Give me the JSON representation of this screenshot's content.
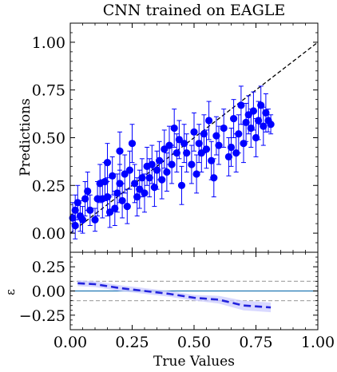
{
  "chart_data": [
    {
      "type": "scatter",
      "title": "CNN trained on EAGLE",
      "xlabel": "",
      "ylabel": "Predictions",
      "xlim": [
        0,
        1
      ],
      "ylim": [
        -0.1,
        1.1
      ],
      "x_ticks": [
        "0.00",
        "0.25",
        "0.50",
        "0.75",
        "1.00"
      ],
      "y_ticks": [
        "0.00",
        "0.25",
        "0.50",
        "0.75",
        "1.00"
      ],
      "grid": false,
      "reference_line": {
        "style": "dashed",
        "color": "#000000",
        "from": [
          0,
          0
        ],
        "to": [
          1,
          1
        ]
      },
      "marker_color": "#0000ff",
      "series": [
        {
          "points": [
            {
              "x": 0.01,
              "y": 0.08,
              "err": 0.08
            },
            {
              "x": 0.02,
              "y": 0.12,
              "err": 0.08
            },
            {
              "x": 0.02,
              "y": 0.04,
              "err": 0.07
            },
            {
              "x": 0.03,
              "y": 0.16,
              "err": 0.09
            },
            {
              "x": 0.04,
              "y": 0.09,
              "err": 0.08
            },
            {
              "x": 0.05,
              "y": 0.07,
              "err": 0.07
            },
            {
              "x": 0.06,
              "y": 0.18,
              "err": 0.09
            },
            {
              "x": 0.07,
              "y": 0.22,
              "err": 0.1
            },
            {
              "x": 0.08,
              "y": 0.12,
              "err": 0.08
            },
            {
              "x": 0.1,
              "y": 0.07,
              "err": 0.06
            },
            {
              "x": 0.11,
              "y": 0.18,
              "err": 0.09
            },
            {
              "x": 0.12,
              "y": 0.26,
              "err": 0.1
            },
            {
              "x": 0.13,
              "y": 0.18,
              "err": 0.1
            },
            {
              "x": 0.14,
              "y": 0.27,
              "err": 0.1
            },
            {
              "x": 0.15,
              "y": 0.37,
              "err": 0.1
            },
            {
              "x": 0.15,
              "y": 0.19,
              "err": 0.1
            },
            {
              "x": 0.16,
              "y": 0.11,
              "err": 0.08
            },
            {
              "x": 0.17,
              "y": 0.3,
              "err": 0.1
            },
            {
              "x": 0.18,
              "y": 0.13,
              "err": 0.09
            },
            {
              "x": 0.19,
              "y": 0.21,
              "err": 0.1
            },
            {
              "x": 0.2,
              "y": 0.43,
              "err": 0.1
            },
            {
              "x": 0.2,
              "y": 0.26,
              "err": 0.1
            },
            {
              "x": 0.21,
              "y": 0.17,
              "err": 0.09
            },
            {
              "x": 0.22,
              "y": 0.31,
              "err": 0.1
            },
            {
              "x": 0.23,
              "y": 0.14,
              "err": 0.09
            },
            {
              "x": 0.24,
              "y": 0.33,
              "err": 0.1
            },
            {
              "x": 0.25,
              "y": 0.47,
              "err": 0.1
            },
            {
              "x": 0.26,
              "y": 0.26,
              "err": 0.1
            },
            {
              "x": 0.27,
              "y": 0.19,
              "err": 0.1
            },
            {
              "x": 0.28,
              "y": 0.23,
              "err": 0.1
            },
            {
              "x": 0.29,
              "y": 0.29,
              "err": 0.1
            },
            {
              "x": 0.3,
              "y": 0.21,
              "err": 0.1
            },
            {
              "x": 0.31,
              "y": 0.35,
              "err": 0.1
            },
            {
              "x": 0.32,
              "y": 0.29,
              "err": 0.1
            },
            {
              "x": 0.33,
              "y": 0.36,
              "err": 0.1
            },
            {
              "x": 0.34,
              "y": 0.24,
              "err": 0.1
            },
            {
              "x": 0.35,
              "y": 0.33,
              "err": 0.1
            },
            {
              "x": 0.36,
              "y": 0.38,
              "err": 0.1
            },
            {
              "x": 0.37,
              "y": 0.28,
              "err": 0.1
            },
            {
              "x": 0.38,
              "y": 0.44,
              "err": 0.1
            },
            {
              "x": 0.39,
              "y": 0.32,
              "err": 0.1
            },
            {
              "x": 0.4,
              "y": 0.46,
              "err": 0.1
            },
            {
              "x": 0.41,
              "y": 0.36,
              "err": 0.1
            },
            {
              "x": 0.42,
              "y": 0.55,
              "err": 0.1
            },
            {
              "x": 0.43,
              "y": 0.42,
              "err": 0.1
            },
            {
              "x": 0.44,
              "y": 0.49,
              "err": 0.1
            },
            {
              "x": 0.45,
              "y": 0.25,
              "err": 0.1
            },
            {
              "x": 0.46,
              "y": 0.47,
              "err": 0.1
            },
            {
              "x": 0.47,
              "y": 0.42,
              "err": 0.1
            },
            {
              "x": 0.49,
              "y": 0.36,
              "err": 0.1
            },
            {
              "x": 0.5,
              "y": 0.53,
              "err": 0.1
            },
            {
              "x": 0.51,
              "y": 0.31,
              "err": 0.1
            },
            {
              "x": 0.52,
              "y": 0.47,
              "err": 0.1
            },
            {
              "x": 0.53,
              "y": 0.42,
              "err": 0.1
            },
            {
              "x": 0.54,
              "y": 0.52,
              "err": 0.1
            },
            {
              "x": 0.55,
              "y": 0.44,
              "err": 0.1
            },
            {
              "x": 0.56,
              "y": 0.59,
              "err": 0.1
            },
            {
              "x": 0.57,
              "y": 0.38,
              "err": 0.1
            },
            {
              "x": 0.58,
              "y": 0.29,
              "err": 0.1
            },
            {
              "x": 0.59,
              "y": 0.51,
              "err": 0.1
            },
            {
              "x": 0.6,
              "y": 0.46,
              "err": 0.1
            },
            {
              "x": 0.62,
              "y": 0.55,
              "err": 0.1
            },
            {
              "x": 0.64,
              "y": 0.4,
              "err": 0.1
            },
            {
              "x": 0.65,
              "y": 0.45,
              "err": 0.1
            },
            {
              "x": 0.66,
              "y": 0.6,
              "err": 0.1
            },
            {
              "x": 0.67,
              "y": 0.42,
              "err": 0.1
            },
            {
              "x": 0.68,
              "y": 0.52,
              "err": 0.1
            },
            {
              "x": 0.69,
              "y": 0.67,
              "err": 0.1
            },
            {
              "x": 0.7,
              "y": 0.47,
              "err": 0.1
            },
            {
              "x": 0.71,
              "y": 0.58,
              "err": 0.1
            },
            {
              "x": 0.72,
              "y": 0.62,
              "err": 0.1
            },
            {
              "x": 0.73,
              "y": 0.55,
              "err": 0.1
            },
            {
              "x": 0.74,
              "y": 0.64,
              "err": 0.1
            },
            {
              "x": 0.75,
              "y": 0.5,
              "err": 0.1
            },
            {
              "x": 0.76,
              "y": 0.59,
              "err": 0.1
            },
            {
              "x": 0.77,
              "y": 0.67,
              "err": 0.1
            },
            {
              "x": 0.78,
              "y": 0.56,
              "err": 0.1
            },
            {
              "x": 0.79,
              "y": 0.63,
              "err": 0.1
            },
            {
              "x": 0.8,
              "y": 0.59,
              "err": 0.06
            },
            {
              "x": 0.81,
              "y": 0.57,
              "err": 0.05
            }
          ]
        }
      ]
    },
    {
      "type": "line",
      "title": "",
      "xlabel": "True Values",
      "ylabel": "ε",
      "xlim": [
        0,
        1
      ],
      "ylim": [
        -0.4,
        0.4
      ],
      "x_ticks": [
        "0.00",
        "0.25",
        "0.50",
        "0.75",
        "1.00"
      ],
      "y_ticks": [
        "−0.25",
        "0.00",
        "0.25"
      ],
      "grid": false,
      "zero_line": {
        "y": 0,
        "color": "#1f77b4"
      },
      "threshold_lines": [
        {
          "y": 0.1,
          "color": "#aaaaaa"
        },
        {
          "y": -0.1,
          "color": "#aaaaaa"
        }
      ],
      "series": [
        {
          "style": "dashed",
          "color": "#2222dd",
          "band_color": "#ccccff",
          "x": [
            0.03,
            0.1,
            0.2,
            0.3,
            0.4,
            0.5,
            0.6,
            0.7,
            0.81
          ],
          "y": [
            0.08,
            0.07,
            0.03,
            0.0,
            -0.03,
            -0.07,
            -0.09,
            -0.15,
            -0.17
          ],
          "band_lower": [
            0.05,
            0.04,
            0.0,
            -0.03,
            -0.06,
            -0.1,
            -0.13,
            -0.2,
            -0.22
          ],
          "band_upper": [
            0.11,
            0.1,
            0.06,
            0.03,
            0.0,
            -0.04,
            -0.05,
            -0.1,
            -0.12
          ]
        }
      ]
    }
  ]
}
